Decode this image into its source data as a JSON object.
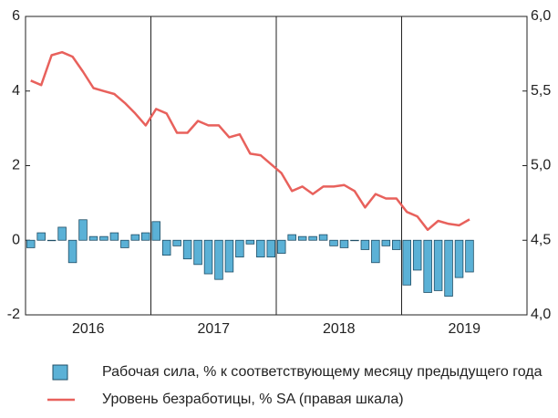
{
  "chart_data": {
    "type": "bar-line",
    "categories": [
      null,
      null,
      null,
      null,
      null,
      null,
      null,
      null,
      null,
      null,
      null,
      null,
      null,
      null,
      null,
      null,
      null,
      null,
      null,
      null,
      null,
      null,
      null,
      null,
      null,
      null,
      null,
      null,
      null,
      null,
      null,
      null,
      null,
      null,
      null,
      null,
      null,
      null,
      null,
      null,
      null,
      null,
      null,
      null,
      null,
      null,
      null,
      null
    ],
    "year_labels": [
      "2016",
      "2017",
      "2018",
      "2019"
    ],
    "series": [
      {
        "name": "Рабочая сила, % к соответствующему месяцу предыдущего года",
        "color": "#5bb1d6",
        "kind": "bar",
        "values": [
          -0.2,
          0.2,
          0,
          0.35,
          -0.6,
          0.55,
          0.1,
          0.1,
          0.2,
          -0.2,
          0.15,
          0.2,
          0.5,
          -0.4,
          -0.15,
          -0.5,
          -0.65,
          -0.9,
          -1.05,
          -0.85,
          -0.45,
          -0.1,
          -0.45,
          -0.45,
          -0.35,
          0.15,
          0.1,
          0.1,
          0.15,
          -0.15,
          -0.2,
          0,
          -0.25,
          -0.6,
          -0.15,
          -0.25,
          -1.2,
          -0.8,
          -1.4,
          -1.35,
          -1.5,
          -1.0,
          -0.85,
          null,
          null,
          null,
          null,
          null
        ]
      },
      {
        "name": "Уровень безработицы, % SA (правая шкала)",
        "color": "#e8615c",
        "kind": "line",
        "axis": "y2",
        "values": [
          5.57,
          5.54,
          5.74,
          5.76,
          5.73,
          5.63,
          5.52,
          5.5,
          5.48,
          5.42,
          5.35,
          5.27,
          5.38,
          5.35,
          5.22,
          5.22,
          5.3,
          5.27,
          5.27,
          5.19,
          5.21,
          5.08,
          5.07,
          5.01,
          4.95,
          4.83,
          4.86,
          4.81,
          4.86,
          4.86,
          4.87,
          4.83,
          4.72,
          4.81,
          4.78,
          4.78,
          4.69,
          4.66,
          4.57,
          4.63,
          4.61,
          4.6,
          4.64,
          null,
          null,
          null,
          null,
          null
        ]
      }
    ],
    "ylim": [
      -2,
      6
    ],
    "yticks": [
      -2,
      0,
      2,
      4,
      6
    ],
    "y2lim": [
      4,
      6
    ],
    "y2ticks": [
      {
        "value": 4,
        "label": "4,0"
      },
      {
        "value": 4.5,
        "label": "4,5"
      },
      {
        "value": 5,
        "label": "5,0"
      },
      {
        "value": 5.5,
        "label": "5,5"
      },
      {
        "value": 6,
        "label": "6,0"
      }
    ]
  }
}
